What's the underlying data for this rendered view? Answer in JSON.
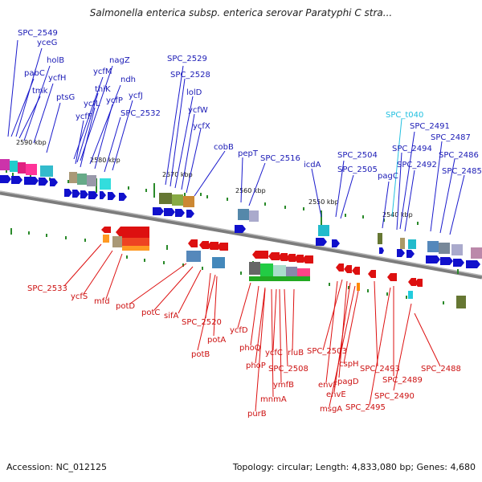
{
  "title": "Salmonella enterica subsp. enterica serovar Paratyphi C stra...",
  "footer": {
    "accession": "Accession: NC_012125",
    "summary": "Topology: circular; Length: 4,833,080 bp; Genes: 4,680"
  },
  "colors": {
    "forward": "#1010cc",
    "reverse": "#dd1010",
    "trna": "#22c0e0",
    "backbone": "#808080",
    "ticks": "#2a8a2a"
  },
  "ruler": [
    {
      "label": "2590 kbp"
    },
    {
      "label": "2580 kbp"
    },
    {
      "label": "2570 kbp"
    },
    {
      "label": "2560 kbp"
    },
    {
      "label": "2550 kbp"
    },
    {
      "label": "2540 kbp"
    }
  ],
  "forward_genes": [
    {
      "label": "SPC_2549"
    },
    {
      "label": "yceG"
    },
    {
      "label": "holB"
    },
    {
      "label": "pabC"
    },
    {
      "label": "ycfH"
    },
    {
      "label": "tmk"
    },
    {
      "label": "ptsG"
    },
    {
      "label": "nagZ"
    },
    {
      "label": "ycfM"
    },
    {
      "label": "ndh"
    },
    {
      "label": "thiK"
    },
    {
      "label": "ycfL"
    },
    {
      "label": "ycfP"
    },
    {
      "label": "ycfJ"
    },
    {
      "label": "ycfF"
    },
    {
      "label": "SPC_2532"
    },
    {
      "label": "SPC_2529"
    },
    {
      "label": "SPC_2528"
    },
    {
      "label": "lolD"
    },
    {
      "label": "ycfW"
    },
    {
      "label": "ycfX"
    },
    {
      "label": "cobB"
    },
    {
      "label": "pepT"
    },
    {
      "label": "SPC_2516"
    },
    {
      "label": "icdA"
    },
    {
      "label": "SPC_2504"
    },
    {
      "label": "SPC_2505"
    },
    {
      "label": "SPC_t040"
    },
    {
      "label": "SPC_2491"
    },
    {
      "label": "SPC_2487"
    },
    {
      "label": "SPC_2494"
    },
    {
      "label": "SPC_2486"
    },
    {
      "label": "pagC"
    },
    {
      "label": "SPC_2492"
    },
    {
      "label": "SPC_2485"
    }
  ],
  "reverse_genes": [
    {
      "label": "SPC_2533"
    },
    {
      "label": "ycfS"
    },
    {
      "label": "mfd"
    },
    {
      "label": "potD"
    },
    {
      "label": "potC"
    },
    {
      "label": "sifA"
    },
    {
      "label": "SPC_2520"
    },
    {
      "label": "potA"
    },
    {
      "label": "potB"
    },
    {
      "label": "ycfD"
    },
    {
      "label": "phoQ"
    },
    {
      "label": "phoP"
    },
    {
      "label": "ycfC"
    },
    {
      "label": "SPC_2508"
    },
    {
      "label": "rluB"
    },
    {
      "label": "ymfB"
    },
    {
      "label": "mnmA"
    },
    {
      "label": "purB"
    },
    {
      "label": "SPC_2503"
    },
    {
      "label": "cspH"
    },
    {
      "label": "envF"
    },
    {
      "label": "pagD"
    },
    {
      "label": "envE"
    },
    {
      "label": "msgA"
    },
    {
      "label": "SPC_2493"
    },
    {
      "label": "SPC_2489"
    },
    {
      "label": "SPC_2495"
    },
    {
      "label": "SPC_2490"
    },
    {
      "label": "SPC_2488"
    }
  ]
}
